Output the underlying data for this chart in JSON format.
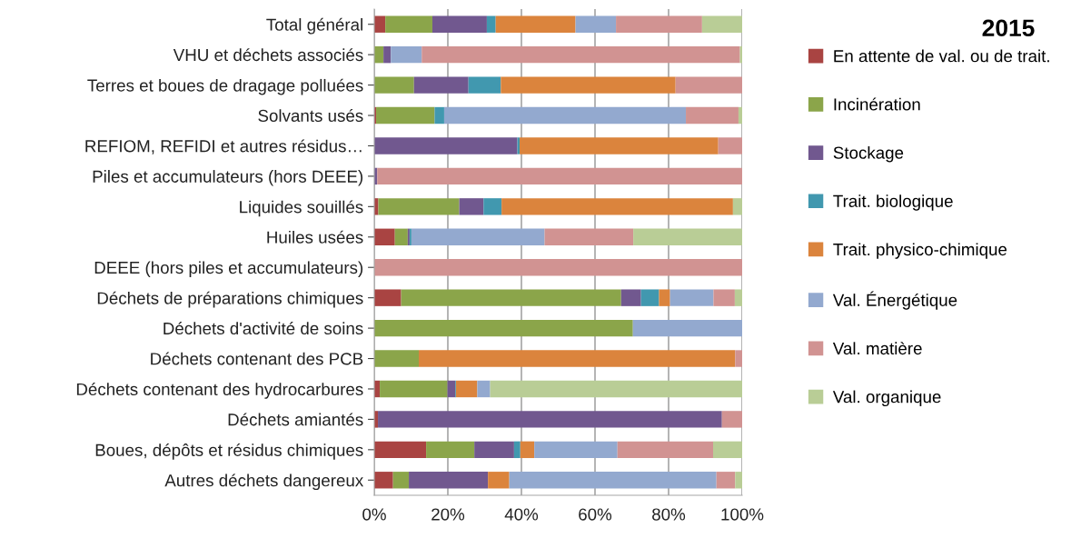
{
  "chart_data": {
    "type": "bar",
    "orientation": "horizontal",
    "stacked": true,
    "title": "2015",
    "categories": [
      "Total général",
      "VHU et déchets associés",
      "Terres et boues de dragage polluées",
      "Solvants usés",
      "REFIOM, REFIDI et autres résidus…",
      "Piles et accumulateurs (hors DEEE)",
      "Liquides souillés",
      "Huiles usées",
      "DEEE (hors piles et accumulateurs)",
      "Déchets de préparations chimiques",
      "Déchets d'activité de soins",
      "Déchets contenant des PCB",
      "Déchets contenant des hydrocarbures",
      "Déchets amiantés",
      "Boues, dépôts et résidus chimiques",
      "Autres déchets dangereux"
    ],
    "series": [
      {
        "name": "En attente de val. ou de trait.",
        "color": "#a94442",
        "values": [
          3.0,
          0,
          0,
          0.5,
          0,
          0,
          1.1,
          5.6,
          0,
          7.3,
          0,
          0,
          1.5,
          1.0,
          14.1,
          5.1
        ]
      },
      {
        "name": "Incinération",
        "color": "#8ba54a",
        "values": [
          12.8,
          2.5,
          10.8,
          15.9,
          0,
          0,
          22.0,
          3.5,
          0,
          59.8,
          70.3,
          12.1,
          18.4,
          0,
          13.1,
          4.3
        ]
      },
      {
        "name": "Stockage",
        "color": "#71588f",
        "values": [
          14.8,
          2.0,
          14.8,
          0,
          38.9,
          0.8,
          6.6,
          0.5,
          0,
          5.4,
          0,
          0,
          2.1,
          93.5,
          10.8,
          21.5
        ]
      },
      {
        "name": "Trait. biologique",
        "color": "#4198af",
        "values": [
          2.4,
          0,
          8.8,
          2.6,
          0.6,
          0,
          4.9,
          0.5,
          0,
          4.9,
          0,
          0,
          0.2,
          0,
          1.7,
          0
        ]
      },
      {
        "name": "Trait. physico-chimique",
        "color": "#db843d",
        "values": [
          21.7,
          0,
          47.5,
          0,
          54.0,
          0,
          62.9,
          0,
          0,
          3.0,
          0,
          86.0,
          5.8,
          0,
          3.8,
          5.8
        ]
      },
      {
        "name": "Val. Énergétique",
        "color": "#93a9cf",
        "values": [
          11.0,
          8.4,
          0,
          65.7,
          0,
          0,
          0,
          36.2,
          0,
          11.8,
          29.7,
          0,
          3.5,
          0,
          22.6,
          56.3
        ]
      },
      {
        "name": "Val. matière",
        "color": "#d19392",
        "values": [
          23.4,
          86.5,
          18.1,
          14.3,
          6.5,
          99.2,
          0,
          24.1,
          100,
          5.8,
          0,
          1.9,
          0,
          5.5,
          26.0,
          5.1
        ]
      },
      {
        "name": "Val. organique",
        "color": "#b9cd96",
        "values": [
          10.9,
          0.6,
          0,
          1.0,
          0,
          0,
          2.5,
          29.6,
          0,
          2.0,
          0,
          0,
          68.5,
          0,
          7.9,
          1.9
        ]
      }
    ],
    "xlim": [
      0,
      100
    ],
    "xticks": [
      {
        "value": 0,
        "label": "0%"
      },
      {
        "value": 20,
        "label": "20%"
      },
      {
        "value": 40,
        "label": "40%"
      },
      {
        "value": 60,
        "label": "60%"
      },
      {
        "value": 80,
        "label": "80%"
      },
      {
        "value": 100,
        "label": "100%"
      }
    ],
    "grid": "x",
    "legend": "right"
  }
}
